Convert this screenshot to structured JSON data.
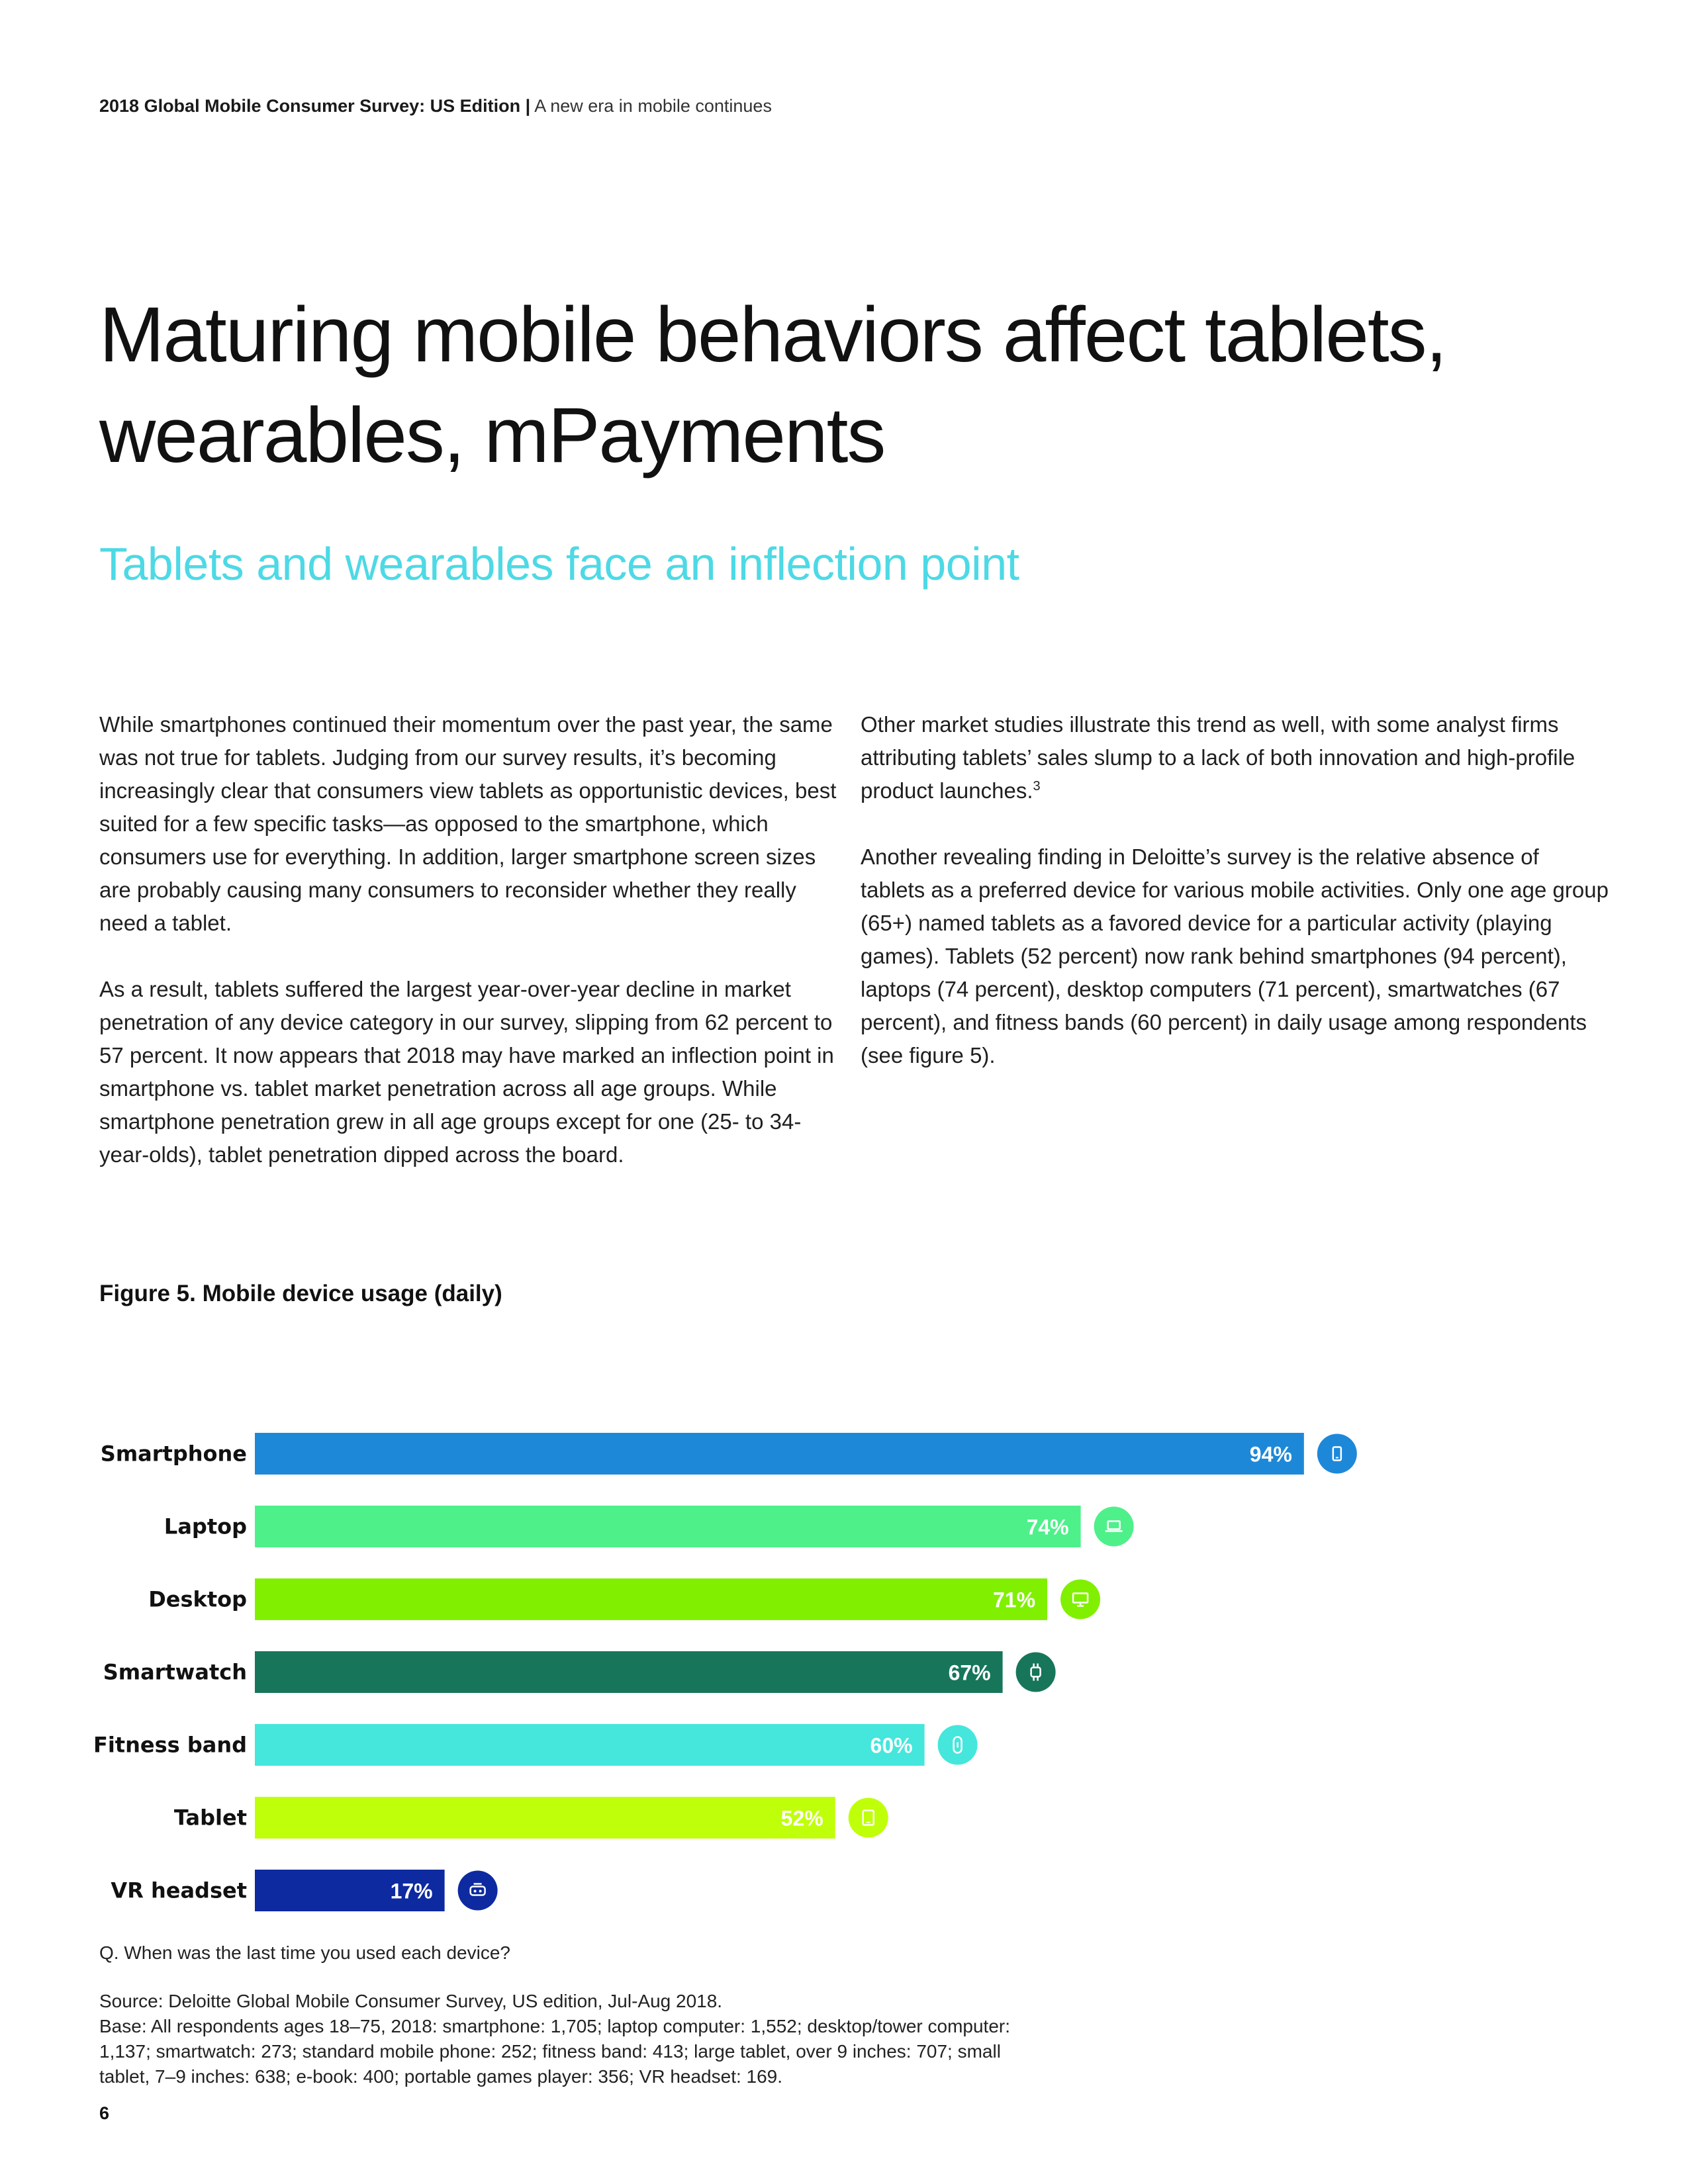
{
  "header": {
    "report_title": "2018 Global Mobile Consumer Survey: US Edition",
    "separator": "|",
    "subtitle": "A new era in mobile continues"
  },
  "title": "Maturing mobile behaviors affect tablets, wearables, mPayments",
  "section_heading": "Tablets and wearables face an inflection point",
  "left_column": {
    "p1": "While smartphones continued their momentum over the past year, the same was not true for tablets. Judging from our survey results, it’s becoming increasingly clear that consumers view tablets as opportunistic devices, best suited for a few specific tasks—as opposed to the smartphone, which consumers use for everything. In addition, larger smartphone screen sizes are probably causing many consumers to reconsider whether they really need a tablet.",
    "p2": "As a result, tablets suffered the largest year-over-year decline in market penetration of any device category in our survey, slipping from 62 percent to 57 percent. It now appears that 2018 may have marked an inflection point in smartphone vs. tablet market penetration across all age groups. While smartphone penetration grew in all age groups except for one (25- to 34-year-olds), tablet penetration dipped across the board."
  },
  "right_column": {
    "p1": "Other market studies illustrate this trend as well, with some analyst firms attributing tablets’ sales slump to a lack of both innovation and high-profile product launches.",
    "p1_footnote": "3",
    "p2": "Another revealing finding in Deloitte’s survey is the relative absence of tablets as a preferred device for various mobile activities. Only one age group (65+) named tablets as a favored device for a particular activity (playing games). Tablets (52 percent) now rank behind smartphones (94 percent), laptops (74 percent), desktop computers (71 percent), smartwatches (67 percent), and fitness bands (60 percent) in daily usage among respondents (see figure 5)."
  },
  "figure_title": "Figure 5. Mobile device usage (daily)",
  "chart_data": {
    "type": "bar",
    "orientation": "horizontal",
    "title": "",
    "xlabel": "",
    "ylabel": "",
    "xlim": [
      0,
      100
    ],
    "grid": false,
    "categories": [
      "Smartphone",
      "Laptop",
      "Desktop",
      "Smartwatch",
      "Fitness band",
      "Tablet",
      "VR headset"
    ],
    "values": [
      94,
      74,
      71,
      67,
      60,
      52,
      17
    ],
    "value_labels": [
      "94%",
      "74%",
      "71%",
      "67%",
      "60%",
      "52%",
      "17%"
    ],
    "colors": [
      "#1e88d8",
      "#4ef08a",
      "#80f000",
      "#17765a",
      "#45e6dc",
      "#bfff0a",
      "#0d2aa0"
    ],
    "icons": [
      "smartphone-icon",
      "laptop-icon",
      "desktop-icon",
      "smartwatch-icon",
      "fitness-band-icon",
      "tablet-icon",
      "vr-headset-icon"
    ]
  },
  "question": "Q. When was the last time you used each device?",
  "source": "Source: Deloitte Global Mobile Consumer Survey, US edition, Jul-Aug 2018.",
  "base": "Base: All respondents ages 18–75, 2018: smartphone: 1,705; laptop computer: 1,552; desktop/tower computer: 1,137; smartwatch: 273; standard mobile phone: 252; fitness band: 413; large tablet, over 9 inches: 707; small tablet, 7–9 inches: 638; e-book: 400; portable games player: 356; VR headset: 169.",
  "page_number": "6"
}
